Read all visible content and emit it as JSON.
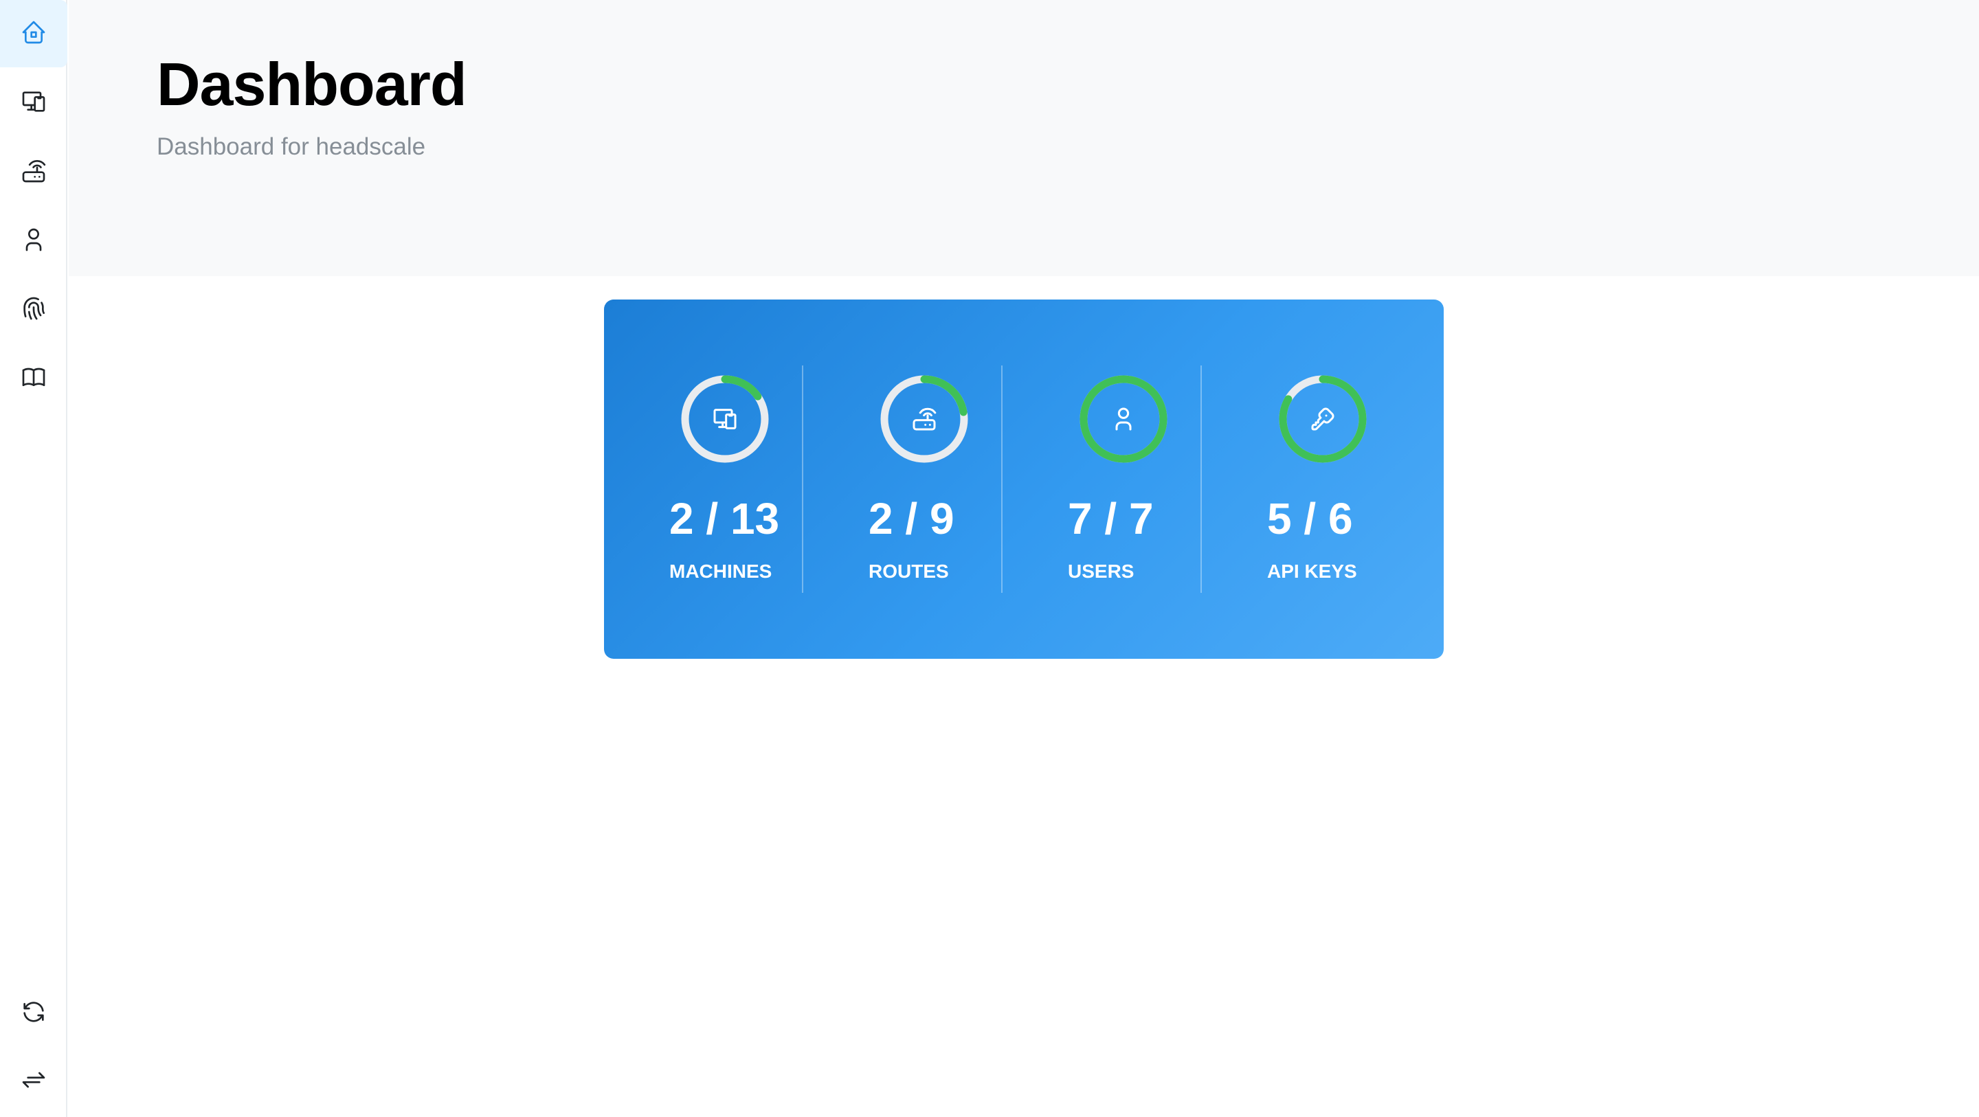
{
  "sidebar": {
    "items": [
      {
        "name": "home",
        "icon": "home-icon",
        "active": true
      },
      {
        "name": "machines",
        "icon": "devices-icon"
      },
      {
        "name": "routes",
        "icon": "router-icon"
      },
      {
        "name": "users",
        "icon": "user-icon"
      },
      {
        "name": "api-keys",
        "icon": "fingerprint-icon"
      },
      {
        "name": "docs",
        "icon": "book-icon"
      }
    ],
    "bottom": [
      {
        "name": "refresh",
        "icon": "refresh-icon"
      },
      {
        "name": "switch",
        "icon": "arrows-exchange-icon"
      }
    ]
  },
  "header": {
    "title": "Dashboard",
    "subtitle": "Dashboard for headscale"
  },
  "stats": [
    {
      "value": "2 / 13",
      "label": "MACHINES",
      "icon": "devices-icon",
      "progress": 0.154
    },
    {
      "value": "2 / 9",
      "label": "ROUTES",
      "icon": "router-icon",
      "progress": 0.222
    },
    {
      "value": "7 / 7",
      "label": "USERS",
      "icon": "user-icon",
      "progress": 1.0
    },
    {
      "value": "5 / 6",
      "label": "API KEYS",
      "icon": "key-icon",
      "progress": 0.833
    }
  ],
  "colors": {
    "accent": "#228be6",
    "progress": "#40c057",
    "track": "#e9ecef",
    "card_gradient_start": "#1c7ed6",
    "card_gradient_end": "#4dabf7"
  }
}
